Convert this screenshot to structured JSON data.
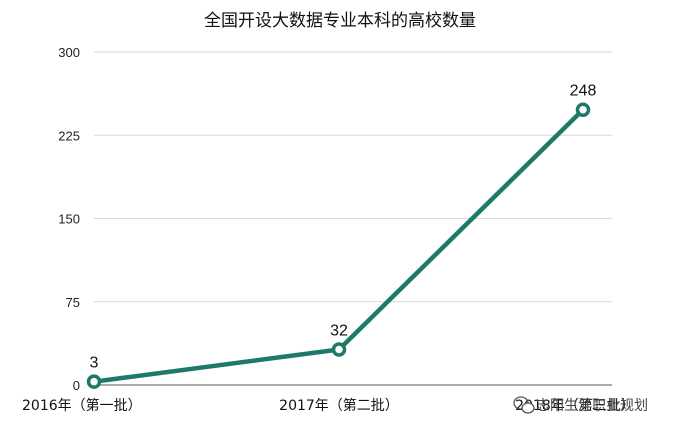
{
  "chart_data": {
    "type": "line",
    "title": "全国开设大数据专业本科的高校数量",
    "xlabel": "",
    "ylabel": "",
    "categories": [
      "2016年（第一批）",
      "2017年（第二批）",
      "2018年（第三批）"
    ],
    "series": [
      {
        "values": [
          3,
          32,
          248
        ],
        "color": "#1d7a6a"
      }
    ],
    "data_labels": [
      "3",
      "32",
      "248"
    ],
    "ylim": [
      0,
      300
    ],
    "yticks": [
      "0",
      "75",
      "150",
      "225",
      "300"
    ],
    "grid": true
  },
  "watermark": {
    "icon": "wechat-icon",
    "text": "志阳生涯职业规划"
  }
}
